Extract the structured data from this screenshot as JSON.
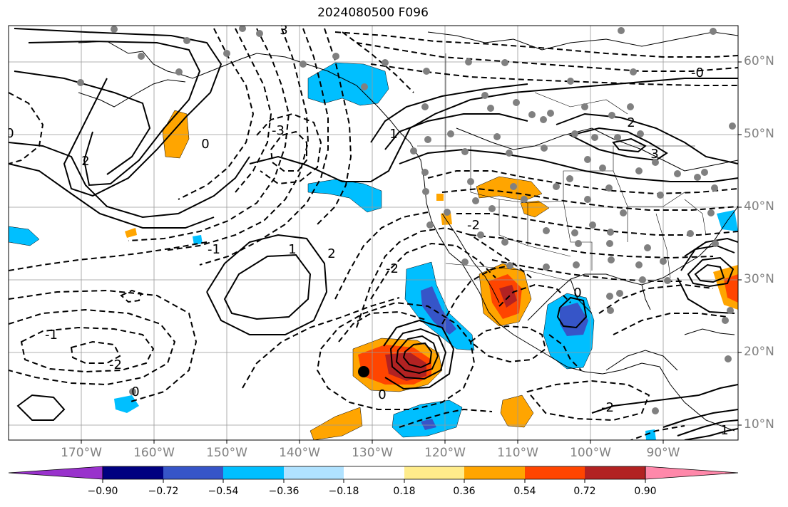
{
  "title": "2024080500 F096",
  "colors": {
    "coastline": "#000000",
    "grid": "#999999",
    "station": "#808080",
    "label": "#808080"
  },
  "latitude_labels": [
    "60°N",
    "50°N",
    "40°N",
    "30°N",
    "20°N",
    "10°N"
  ],
  "longitude_labels": [
    "170°W",
    "160°W",
    "150°W",
    "140°W",
    "130°W",
    "120°W",
    "110°W",
    "100°W",
    "90°W"
  ],
  "contour_labels": [
    "0",
    "2",
    "1",
    "-2",
    "-1",
    "3",
    "-3",
    "0",
    "2",
    "-2",
    "1",
    "0",
    "-1",
    "2",
    "3",
    "-2",
    "0",
    "-2",
    "0",
    "1",
    "-0"
  ],
  "colorbar": {
    "ticks": [
      "−0.90",
      "−0.72",
      "−0.54",
      "−0.36",
      "−0.18",
      "0.18",
      "0.36",
      "0.54",
      "0.72",
      "0.90"
    ],
    "colors": [
      "#9932CC",
      "#000080",
      "#3655C8",
      "#00BFFF",
      "#B0E2FF",
      "#FFFFFF",
      "#FFEC8B",
      "#FFA500",
      "#FF4500",
      "#B22222",
      "#FF88AA"
    ]
  }
}
